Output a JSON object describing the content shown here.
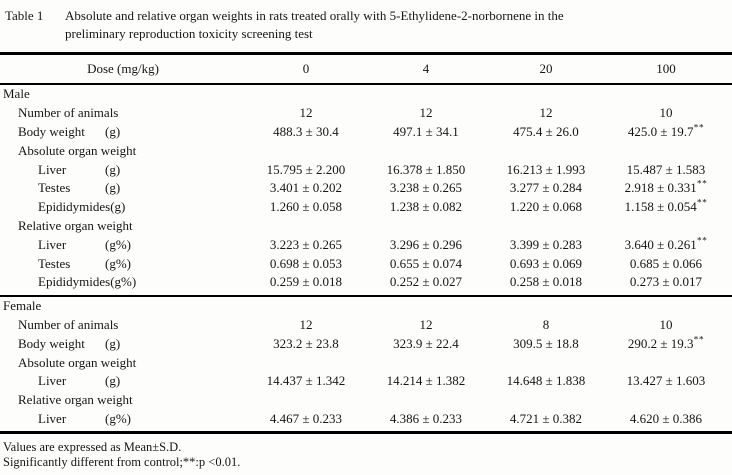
{
  "title": {
    "label": "Table 1",
    "line1": "Absolute and relative organ weights in rats treated orally with 5-Ethylidene-2-norbornene in the",
    "line2": "preliminary reproduction toxicity screening test"
  },
  "header": {
    "dose_label": "Dose (mg/kg)",
    "doses": [
      "0",
      "4",
      "20",
      "100"
    ]
  },
  "sections": [
    {
      "name": "Male",
      "rows": [
        {
          "label": "Number of animals",
          "unit": "",
          "indent": 1,
          "values": [
            "12",
            "12",
            "12",
            "10"
          ],
          "sig": [
            "",
            "",
            "",
            ""
          ]
        },
        {
          "label": "Body weight",
          "unit": "(g)",
          "indent": 1,
          "values": [
            "488.3 ± 30.4",
            "497.1 ± 34.1",
            "475.4 ± 26.0",
            "425.0 ± 19.7"
          ],
          "sig": [
            "",
            "",
            "",
            "**"
          ]
        },
        {
          "label": "Absolute organ weight",
          "unit": "",
          "indent": 1,
          "values": [],
          "sig": []
        },
        {
          "label": "Liver",
          "unit": "(g)",
          "indent": 2,
          "values": [
            "15.795 ± 2.200",
            "16.378 ± 1.850",
            "16.213 ± 1.993",
            "15.487 ± 1.583"
          ],
          "sig": [
            "",
            "",
            "",
            ""
          ]
        },
        {
          "label": "Testes",
          "unit": "(g)",
          "indent": 2,
          "values": [
            "3.401 ± 0.202",
            "3.238 ± 0.265",
            "3.277 ± 0.284",
            "2.918 ± 0.331"
          ],
          "sig": [
            "",
            "",
            "",
            "**"
          ]
        },
        {
          "label": "Epididymides",
          "unit": "(g)",
          "indent": 2,
          "values": [
            "1.260 ± 0.058",
            "1.238 ± 0.082",
            "1.220 ± 0.068",
            "1.158 ± 0.054"
          ],
          "sig": [
            "",
            "",
            "",
            "**"
          ]
        },
        {
          "label": "Relative organ weight",
          "unit": "",
          "indent": 1,
          "values": [],
          "sig": []
        },
        {
          "label": "Liver",
          "unit": "(g%)",
          "indent": 2,
          "values": [
            "3.223 ± 0.265",
            "3.296 ± 0.296",
            "3.399 ± 0.283",
            "3.640 ± 0.261"
          ],
          "sig": [
            "",
            "",
            "",
            "**"
          ]
        },
        {
          "label": "Testes",
          "unit": "(g%)",
          "indent": 2,
          "values": [
            "0.698 ± 0.053",
            "0.655 ± 0.074",
            "0.693 ± 0.069",
            "0.685 ± 0.066"
          ],
          "sig": [
            "",
            "",
            "",
            ""
          ]
        },
        {
          "label": "Epididymides",
          "unit": "(g%)",
          "indent": 2,
          "values": [
            "0.259 ± 0.018",
            "0.252 ± 0.027",
            "0.258 ± 0.018",
            "0.273 ± 0.017"
          ],
          "sig": [
            "",
            "",
            "",
            ""
          ]
        }
      ]
    },
    {
      "name": "Female",
      "rows": [
        {
          "label": "Number of animals",
          "unit": "",
          "indent": 1,
          "values": [
            "12",
            "12",
            "8",
            "10"
          ],
          "sig": [
            "",
            "",
            "",
            ""
          ]
        },
        {
          "label": "Body weight",
          "unit": "(g)",
          "indent": 1,
          "values": [
            "323.2 ± 23.8",
            "323.9 ± 22.4",
            "309.5 ± 18.8",
            "290.2 ± 19.3"
          ],
          "sig": [
            "",
            "",
            "",
            "**"
          ]
        },
        {
          "label": "Absolute organ weight",
          "unit": "",
          "indent": 1,
          "values": [],
          "sig": []
        },
        {
          "label": "Liver",
          "unit": "(g)",
          "indent": 2,
          "values": [
            "14.437 ± 1.342",
            "14.214 ± 1.382",
            "14.648 ± 1.838",
            "13.427 ± 1.603"
          ],
          "sig": [
            "",
            "",
            "",
            ""
          ]
        },
        {
          "label": "Relative organ weight",
          "unit": "",
          "indent": 1,
          "values": [],
          "sig": []
        },
        {
          "label": "Liver",
          "unit": "(g%)",
          "indent": 2,
          "values": [
            "4.467 ± 0.233",
            "4.386 ± 0.233",
            "4.721 ± 0.382",
            "4.620 ± 0.386"
          ],
          "sig": [
            "",
            "",
            "",
            ""
          ]
        }
      ]
    }
  ],
  "footnotes": [
    "Values are expressed as Mean±S.D.",
    "Significantly different from control;**:p <0.01."
  ]
}
